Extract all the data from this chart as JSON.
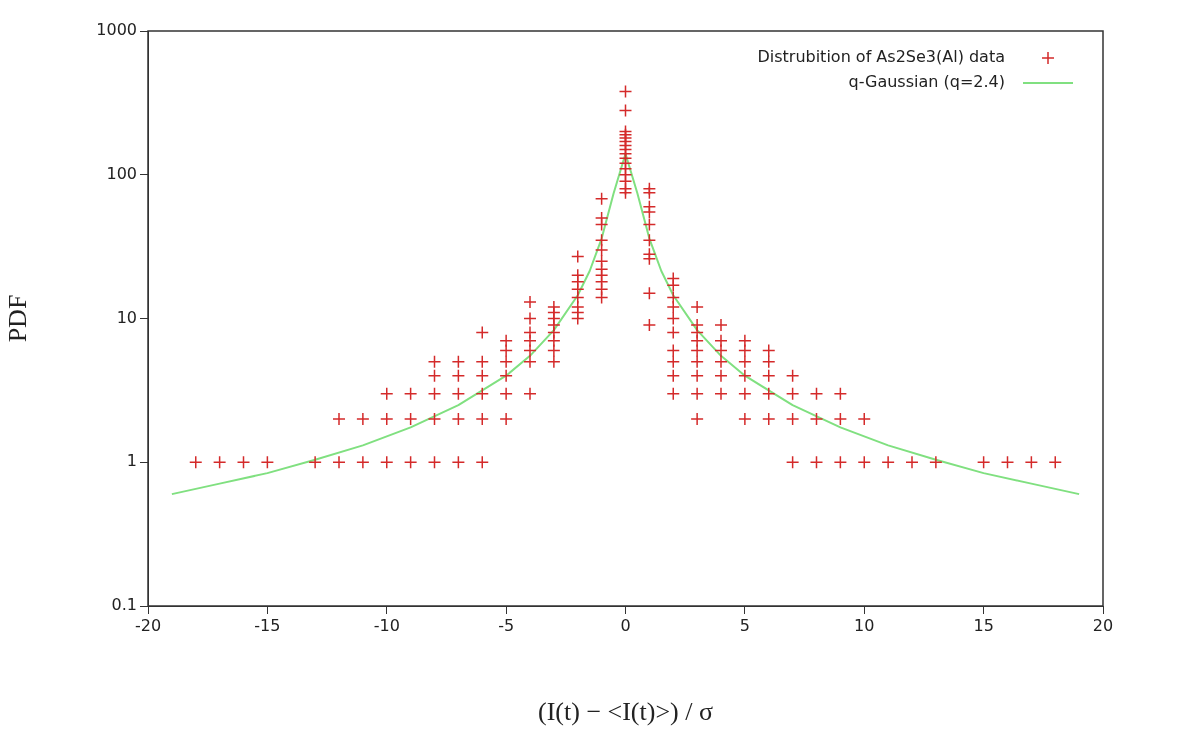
{
  "chart_data": {
    "type": "scatter",
    "xlabel": "(I(t) − <I(t)>) / σ",
    "ylabel": "PDF",
    "log": "y",
    "legend": "top right",
    "marker": "cross",
    "grid": false,
    "xlim": [
      -20,
      20
    ],
    "xticks": [
      -20,
      -15,
      -10,
      -5,
      0,
      5,
      10,
      15,
      20
    ],
    "ylim": [
      0.1,
      1000
    ],
    "yticks": [
      0.1,
      1,
      10,
      100,
      1000
    ],
    "series": [
      {
        "name": "Distrubition of As2Se3(Al) data",
        "type": "scatter",
        "color": "#d42a2a",
        "x": [
          -18,
          -17,
          -16,
          -15,
          -13,
          -12,
          -12,
          -11,
          -11,
          -10,
          -10,
          -10,
          -9,
          -9,
          -9,
          -8,
          -8,
          -8,
          -8,
          -8,
          -7,
          -7,
          -7,
          -7,
          -7,
          -6,
          -6,
          -6,
          -6,
          -6,
          -6,
          -5,
          -5,
          -5,
          -5,
          -5,
          -5,
          -4,
          -4,
          -4,
          -4,
          -4,
          -4,
          -4,
          -3,
          -3,
          -3,
          -3,
          -3,
          -3,
          -3,
          -3,
          -2,
          -2,
          -2,
          -2,
          -2,
          -2,
          -2,
          -2,
          -1,
          -1,
          -1,
          -1,
          -1,
          -1,
          -1,
          -1,
          -1,
          -1,
          -1,
          0,
          0,
          0,
          0,
          0,
          0,
          0,
          0,
          0,
          0,
          0,
          0,
          0,
          0,
          0,
          0,
          1,
          1,
          1,
          1,
          1,
          1,
          1,
          1,
          1,
          1,
          2,
          2,
          2,
          2,
          2,
          2,
          2,
          2,
          2,
          2,
          3,
          3,
          3,
          3,
          3,
          3,
          3,
          3,
          3,
          4,
          4,
          4,
          4,
          4,
          4,
          5,
          5,
          5,
          5,
          5,
          5,
          6,
          6,
          6,
          6,
          6,
          7,
          7,
          7,
          7,
          8,
          8,
          8,
          9,
          9,
          9,
          10,
          10,
          11,
          12,
          13,
          15,
          16,
          17,
          18
        ],
        "values": [
          1,
          1,
          1,
          1,
          1,
          1,
          2,
          1,
          2,
          1,
          2,
          3,
          1,
          2,
          3,
          1,
          2,
          3,
          4,
          5,
          1,
          2,
          3,
          4,
          5,
          1,
          2,
          3,
          4,
          5,
          8,
          2,
          3,
          4,
          5,
          6,
          7,
          3,
          5,
          6,
          7,
          8,
          10,
          13,
          5,
          6,
          7,
          8,
          9,
          10,
          11,
          12,
          10,
          11,
          12,
          14,
          16,
          18,
          20,
          27,
          14,
          16,
          18,
          20,
          22,
          25,
          30,
          35,
          45,
          50,
          68,
          75,
          80,
          90,
          100,
          110,
          120,
          130,
          140,
          150,
          160,
          170,
          180,
          190,
          200,
          280,
          380,
          9,
          15,
          26,
          28,
          35,
          45,
          55,
          60,
          75,
          80,
          3,
          4,
          5,
          6,
          8,
          10,
          12,
          14,
          17,
          19,
          2,
          3,
          4,
          5,
          6,
          7,
          8,
          9,
          12,
          3,
          4,
          5,
          6,
          7,
          9,
          2,
          3,
          4,
          5,
          6,
          7,
          2,
          3,
          4,
          5,
          6,
          1,
          2,
          3,
          4,
          1,
          2,
          3,
          1,
          2,
          3,
          1,
          2,
          1,
          1,
          1,
          1,
          1,
          1,
          1
        ]
      },
      {
        "name": "q-Gaussian (q=2.4)",
        "type": "line",
        "color": "#80e080",
        "marker": "none",
        "x": [
          -19,
          -17,
          -15,
          -13,
          -11,
          -9,
          -7,
          -5,
          -4,
          -3,
          -2,
          -1.5,
          -1,
          -0.5,
          0,
          0.5,
          1,
          1.5,
          2,
          3,
          4,
          5,
          7,
          9,
          11,
          13,
          15,
          17,
          19
        ],
        "values": [
          0.6,
          0.71,
          0.84,
          1.04,
          1.31,
          1.75,
          2.5,
          4,
          5.5,
          8.3,
          14.5,
          21.4,
          36,
          74,
          140,
          74,
          36,
          21.4,
          14.5,
          8.3,
          5.5,
          4,
          2.5,
          1.75,
          1.31,
          1.04,
          0.84,
          0.71,
          0.6
        ]
      }
    ]
  }
}
